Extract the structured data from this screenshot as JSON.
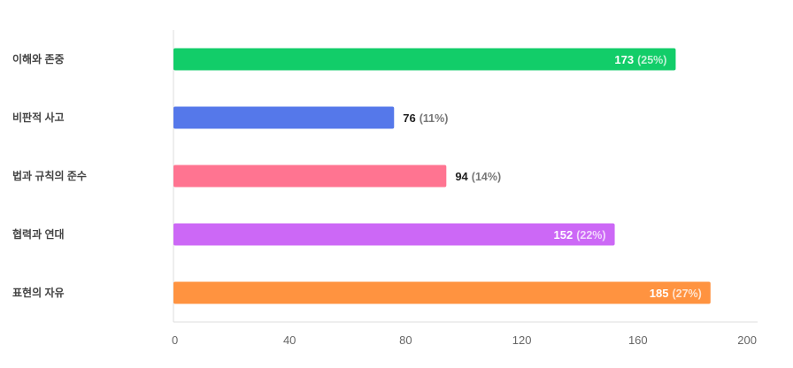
{
  "chart_data": {
    "type": "bar",
    "orientation": "horizontal",
    "categories": [
      "이해와 존중",
      "비판적 사고",
      "법과 규칙의 준수",
      "협력과 연대",
      "표현의 자유"
    ],
    "values": [
      173,
      76,
      94,
      152,
      185
    ],
    "percent_labels": [
      "(25%)",
      "(11%)",
      "(14%)",
      "(22%)",
      "(27%)"
    ],
    "colors": [
      "#12cd69",
      "#5578ea",
      "#ff7491",
      "#cc68f6",
      "#ff9340"
    ],
    "xlim": [
      0,
      200
    ],
    "xticks": [
      "0",
      "40",
      "80",
      "120",
      "160",
      "200"
    ],
    "label_inside": [
      true,
      false,
      false,
      true,
      true
    ],
    "grid": false,
    "title": "",
    "xlabel": "",
    "ylabel": ""
  }
}
